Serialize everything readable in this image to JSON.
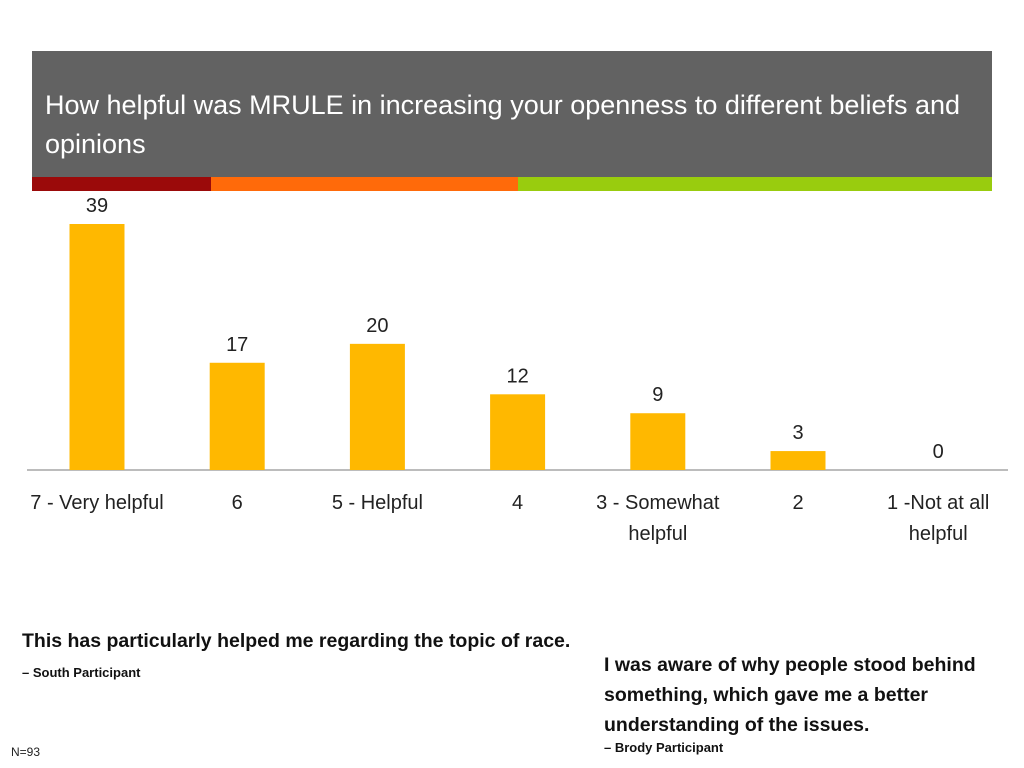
{
  "title": "How helpful was MRULE in increasing your openness to different beliefs and opinions",
  "colors": {
    "title_bg": "#626262",
    "bar": "#FFB800",
    "stripe_red": "#9B0A0A",
    "stripe_orange": "#FF6A0A",
    "stripe_green": "#99CC0E",
    "axis": "#A6A6A6"
  },
  "chart_data": {
    "type": "bar",
    "categories": [
      "7 - Very helpful",
      "6",
      "5 - Helpful",
      "4",
      "3 - Somewhat helpful",
      "2",
      "1 -Not at all helpful"
    ],
    "values": [
      39,
      17,
      20,
      12,
      9,
      3,
      0
    ],
    "data_labels": true,
    "ylim": [
      0,
      40
    ],
    "grid": false,
    "legend": false
  },
  "quotes": [
    {
      "text": "This has particularly helped me regarding the topic of race.",
      "attribution": "– South Participant"
    },
    {
      "text": "I was aware of why people stood behind something, which gave me a better understanding of the issues.",
      "attribution": "– Brody Participant"
    }
  ],
  "note": "N=93"
}
